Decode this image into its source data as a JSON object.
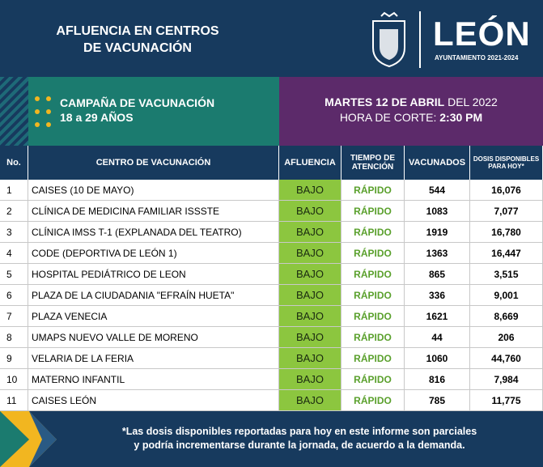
{
  "header": {
    "title_lines": [
      "AFLUENCIA EN CENTROS",
      "DE VACUNACIÓN"
    ],
    "logo": "LEÓN",
    "logo_sub": "AYUNTAMIENTO 2021-2024"
  },
  "campaign": {
    "title": "CAMPAÑA DE VACUNACIÓN",
    "ages": "18 a 29 AÑOS",
    "date_bold": "MARTES 12 DE ABRIL",
    "date_rest": "DEL 2022",
    "cut_label": "HORA DE CORTE:",
    "cut_time": "2:30 PM"
  },
  "table": {
    "columns": [
      "No.",
      "CENTRO DE VACUNACIÓN",
      "AFLUENCIA",
      "TIEMPO DE ATENCIÓN",
      "VACUNADOS",
      "DOSIS DISPONIBLES PARA HOY*"
    ],
    "rows": [
      [
        "1",
        "CAISES (10 DE MAYO)",
        "BAJO",
        "RÁPIDO",
        "544",
        "16,076"
      ],
      [
        "2",
        "CLÍNICA DE MEDICINA FAMILIAR ISSSTE",
        "BAJO",
        "RÁPIDO",
        "1083",
        "7,077"
      ],
      [
        "3",
        "CLÍNICA IMSS T-1 (EXPLANADA DEL TEATRO)",
        "BAJO",
        "RÁPIDO",
        "1919",
        "16,780"
      ],
      [
        "4",
        "CODE (DEPORTIVA DE LEÓN 1)",
        "BAJO",
        "RÁPIDO",
        "1363",
        "16,447"
      ],
      [
        "5",
        "HOSPITAL PEDIÁTRICO DE LEON",
        "BAJO",
        "RÁPIDO",
        "865",
        "3,515"
      ],
      [
        "6",
        "PLAZA DE LA CIUDADANIA \"EFRAÍN HUETA\"",
        "BAJO",
        "RÁPIDO",
        "336",
        "9,001"
      ],
      [
        "7",
        "PLAZA VENECIA",
        "BAJO",
        "RÁPIDO",
        "1621",
        "8,669"
      ],
      [
        "8",
        "UMAPS NUEVO VALLE DE MORENO",
        "BAJO",
        "RÁPIDO",
        "44",
        "206"
      ],
      [
        "9",
        "VELARIA DE LA FERIA",
        "BAJO",
        "RÁPIDO",
        "1060",
        "44,760"
      ],
      [
        "10",
        "MATERNO INFANTIL",
        "BAJO",
        "RÁPIDO",
        "816",
        "7,984"
      ],
      [
        "11",
        "CAISES LEÓN",
        "BAJO",
        "RÁPIDO",
        "785",
        "11,775"
      ]
    ]
  },
  "note": [
    "*Las dosis disponibles reportadas para hoy en este informe son parciales",
    "y podría incrementarse durante la jornada, de acuerdo a la demanda."
  ]
}
